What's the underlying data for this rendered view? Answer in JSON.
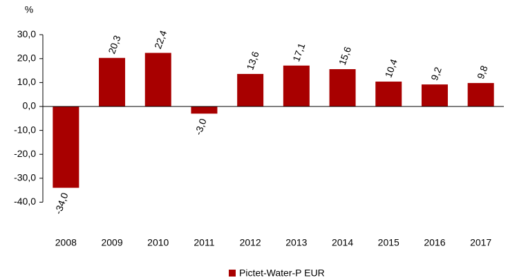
{
  "chart_data": {
    "type": "bar",
    "y_label": "%",
    "categories": [
      "2008",
      "2009",
      "2010",
      "2011",
      "2012",
      "2013",
      "2014",
      "2015",
      "2016",
      "2017"
    ],
    "series": [
      {
        "name": "Pictet-Water-P EUR",
        "color": "#a80000",
        "values": [
          -34.0,
          20.3,
          22.4,
          -3.0,
          13.6,
          17.1,
          15.6,
          10.4,
          9.2,
          9.8
        ],
        "value_labels": [
          "-34,0",
          "20,3",
          "22,4",
          "-3,0",
          "13,6",
          "17,1",
          "15,6",
          "10,4",
          "9,2",
          "9,8"
        ]
      }
    ],
    "ylim": [
      -50,
      40
    ],
    "yticks": [
      {
        "value": -40,
        "label": "-40,0"
      },
      {
        "value": -30,
        "label": "-30,0"
      },
      {
        "value": -20,
        "label": "-20,0"
      },
      {
        "value": -10,
        "label": "-10,0"
      },
      {
        "value": 0,
        "label": "0,0"
      },
      {
        "value": 10,
        "label": "10,0"
      },
      {
        "value": 20,
        "label": "20,0"
      },
      {
        "value": 30,
        "label": "30,0"
      }
    ],
    "legend": "bottom"
  }
}
